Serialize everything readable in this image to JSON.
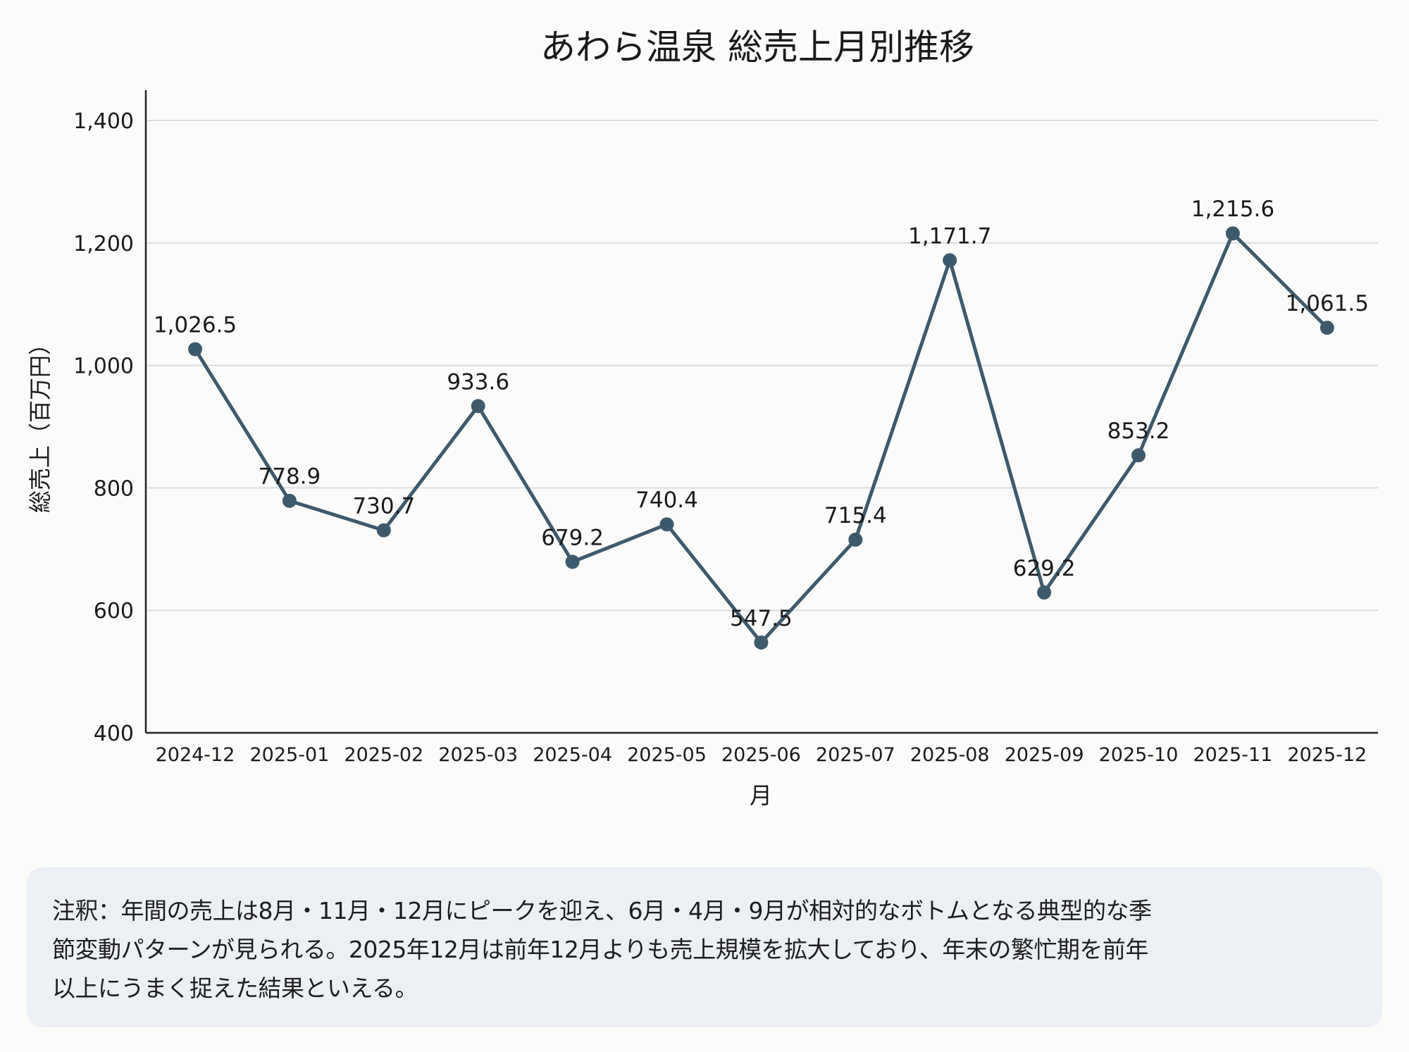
{
  "chart_data": {
    "type": "line",
    "title": "あわら温泉 総売上月別推移",
    "xlabel": "月",
    "ylabel": "総売上（百万円）",
    "categories": [
      "2024-12",
      "2025-01",
      "2025-02",
      "2025-03",
      "2025-04",
      "2025-05",
      "2025-06",
      "2025-07",
      "2025-08",
      "2025-09",
      "2025-10",
      "2025-11",
      "2025-12"
    ],
    "values": [
      1026.5,
      778.9,
      730.7,
      933.6,
      679.2,
      740.4,
      547.5,
      715.4,
      1171.7,
      629.2,
      853.2,
      1215.6,
      1061.5
    ],
    "data_labels": [
      "1,026.5",
      "778.9",
      "730.7",
      "933.6",
      "679.2",
      "740.4",
      "547.5",
      "715.4",
      "1,171.7",
      "629.2",
      "853.2",
      "1,215.6",
      "1,061.5"
    ],
    "ylim": [
      400,
      1450
    ],
    "yticks": [
      400,
      600,
      800,
      1000,
      1200,
      1400
    ],
    "ytick_labels": [
      "400",
      "600",
      "800",
      "1,000",
      "1,200",
      "1,400"
    ],
    "grid": "horizontal",
    "line_color": "#3d5a6c",
    "legend": "none"
  },
  "note": {
    "lines": [
      "注釈：年間の売上は8月・11月・12月にピークを迎え、6月・4月・9月が相対的なボトムとなる典型的な季",
      "節変動パターンが見られる。2025年12月は前年12月よりも売上規模を拡大しており、年末の繁忙期を前年",
      "以上にうまく捉えた結果といえる。"
    ]
  }
}
